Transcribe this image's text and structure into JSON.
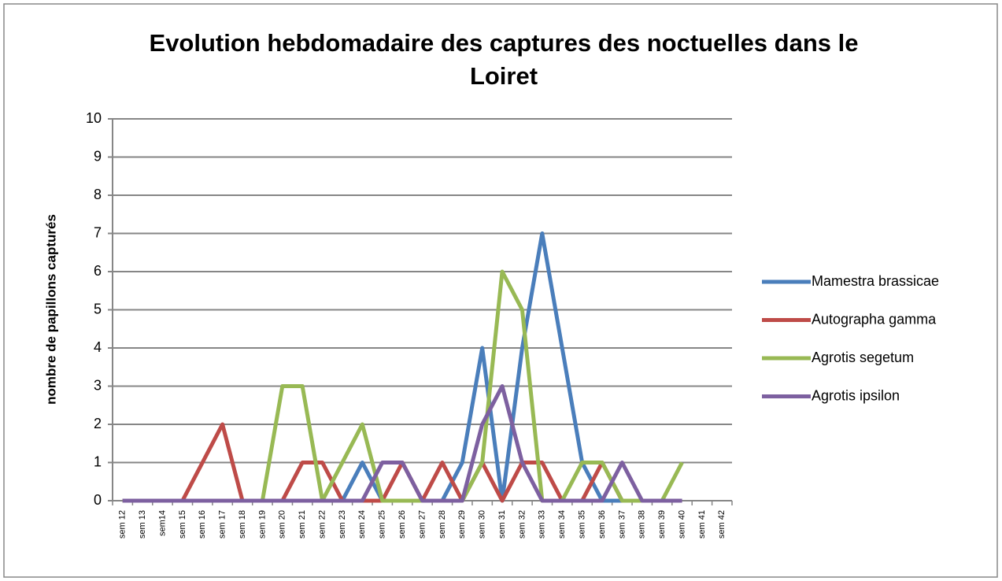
{
  "chart_data": {
    "type": "line",
    "title": "Evolution hebdomadaire des captures des noctuelles dans le Loiret",
    "y_label": "nombre de papillons capturés",
    "categories": [
      "sem 12",
      "sem 13",
      "sem14",
      "sem 15",
      "sem 16",
      "sem 17",
      "sem 18",
      "sem 19",
      "sem 20",
      "sem 21",
      "sem 22",
      "sem 23",
      "sem 24",
      "sem 25",
      "sem 26",
      "sem 27",
      "sem 28",
      "sem 29",
      "sem 30",
      "sem 31",
      "sem 32",
      "sem 33",
      "sem 34",
      "sem 35",
      "sem 36",
      "sem 37",
      "sem 38",
      "sem 39",
      "sem 40",
      "sem 41",
      "sem 42"
    ],
    "series": [
      {
        "name": "Mamestra brassicae",
        "color": "#4a7ebb",
        "values": [
          0,
          0,
          0,
          0,
          0,
          0,
          0,
          0,
          0,
          0,
          0,
          0,
          1,
          0,
          0,
          0,
          0,
          1,
          4,
          0,
          4,
          7,
          4,
          1,
          0,
          0,
          0,
          0,
          0,
          null,
          null
        ]
      },
      {
        "name": "Autographa gamma",
        "color": "#be4b48",
        "values": [
          0,
          0,
          0,
          0,
          1,
          2,
          0,
          0,
          0,
          1,
          1,
          0,
          0,
          0,
          1,
          0,
          1,
          0,
          1,
          0,
          1,
          1,
          0,
          0,
          1,
          0,
          0,
          0,
          0,
          null,
          null
        ]
      },
      {
        "name": "Agrotis segetum",
        "color": "#98b954",
        "values": [
          0,
          0,
          0,
          0,
          0,
          0,
          0,
          0,
          3,
          3,
          0,
          1,
          2,
          0,
          0,
          0,
          0,
          0,
          1,
          6,
          5,
          0,
          0,
          1,
          1,
          0,
          0,
          0,
          1,
          null,
          null
        ]
      },
      {
        "name": "Agrotis ipsilon",
        "color": "#7d60a0",
        "values": [
          0,
          0,
          0,
          0,
          0,
          0,
          0,
          0,
          0,
          0,
          0,
          0,
          0,
          1,
          1,
          0,
          0,
          0,
          2,
          3,
          1,
          0,
          0,
          0,
          0,
          1,
          0,
          0,
          0,
          null,
          null
        ]
      }
    ],
    "ylim": [
      0,
      10
    ],
    "yticks": [
      0,
      1,
      2,
      3,
      4,
      5,
      6,
      7,
      8,
      9,
      10
    ],
    "grid": true,
    "legend": "right"
  }
}
